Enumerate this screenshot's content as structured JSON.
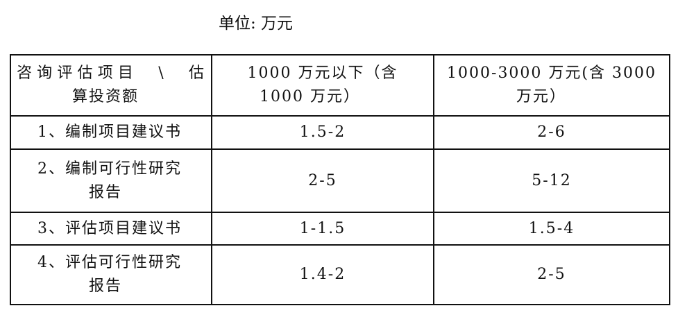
{
  "unit_label": "单位: 万元",
  "header": {
    "col0": [
      "咨询评估项目　\\　估",
      "算投资额"
    ],
    "col1": [
      "1000 万元以下（含",
      "1000 万元）"
    ],
    "col2": [
      "1000-3000 万元(含 3000",
      "万元）"
    ]
  },
  "rows": [
    {
      "item": [
        "1、编制项目建议书"
      ],
      "below_1000": "1.5-2",
      "range_1000_3000": "2-6"
    },
    {
      "item": [
        "2、编制可行性研究",
        "报告"
      ],
      "below_1000": "2-5",
      "range_1000_3000": "5-12"
    },
    {
      "item": [
        "3、评估项目建议书"
      ],
      "below_1000": "1-1.5",
      "range_1000_3000": "1.5-4"
    },
    {
      "item": [
        "4、评估可行性研究",
        "报告"
      ],
      "below_1000": "1.4-2",
      "range_1000_3000": "2-5"
    }
  ]
}
